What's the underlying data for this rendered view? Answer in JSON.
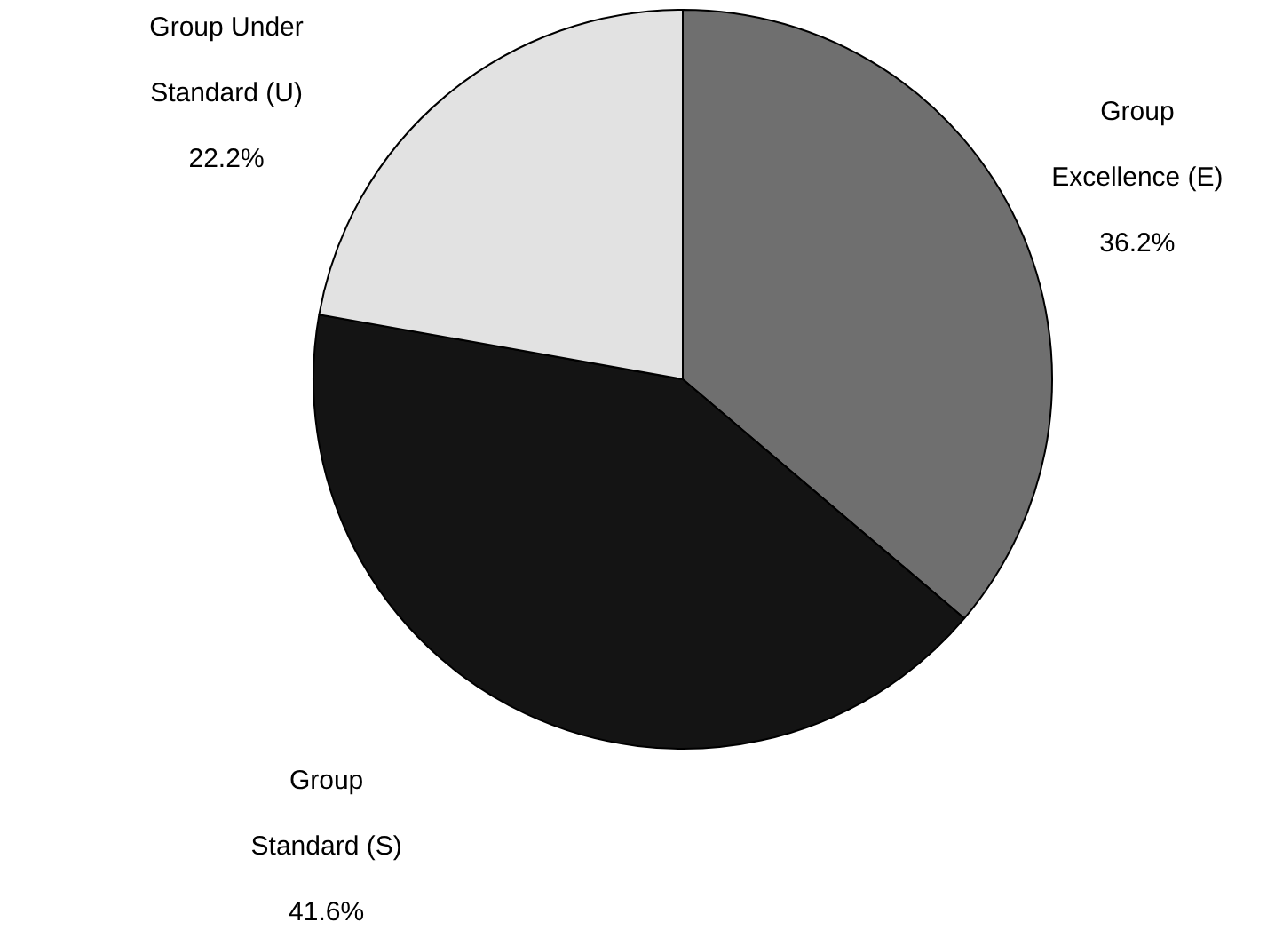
{
  "chart_data": {
    "type": "pie",
    "categories": [
      "Group Excellence (E)",
      "Group Standard (S)",
      "Group Under Standard (U)"
    ],
    "values": [
      36.2,
      41.6,
      22.2
    ],
    "value_labels": [
      "36.2%",
      "41.6%",
      "22.2%"
    ],
    "colors": [
      "#6f6f6f",
      "#141414",
      "#e2e2e2"
    ]
  }
}
